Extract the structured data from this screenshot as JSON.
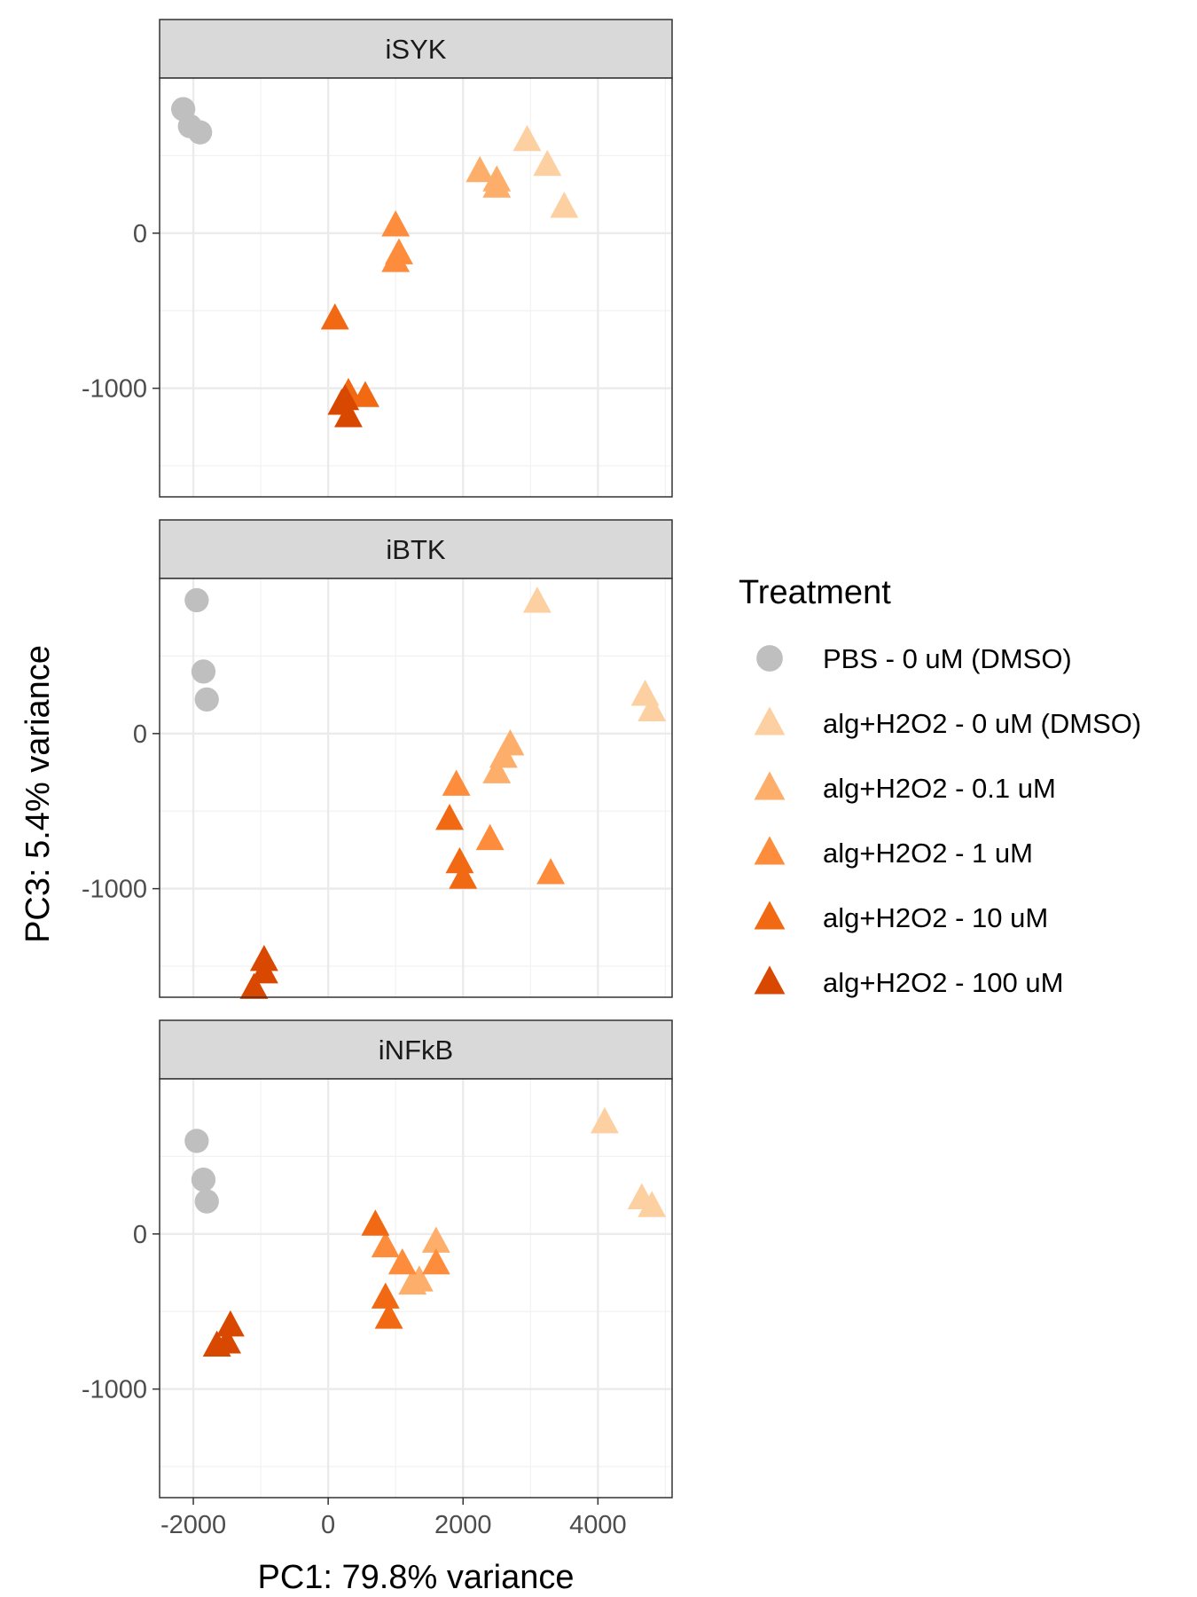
{
  "chart_data": {
    "type": "scatter",
    "xlabel": "PC1: 79.8% variance",
    "ylabel": "PC3: 5.4% variance",
    "xlim": [
      -2500,
      5100
    ],
    "ylim": [
      -1700,
      1000
    ],
    "x_ticks": [
      -2000,
      0,
      2000,
      4000
    ],
    "y_ticks": [
      0,
      -1000
    ],
    "grid": true,
    "legend": {
      "title": "Treatment",
      "placement": "right",
      "entries": [
        {
          "label": "PBS - 0 uM (DMSO)",
          "shape": "circle",
          "color": "#bfbfbf"
        },
        {
          "label": "alg+H2O2 - 0 uM (DMSO)",
          "shape": "triangle",
          "color": "#fdd0a2"
        },
        {
          "label": "alg+H2O2 - 0.1 uM",
          "shape": "triangle",
          "color": "#fdae6b"
        },
        {
          "label": "alg+H2O2 - 1 uM",
          "shape": "triangle",
          "color": "#fd8d3c"
        },
        {
          "label": "alg+H2O2 - 10 uM",
          "shape": "triangle",
          "color": "#f16913"
        },
        {
          "label": "alg+H2O2 - 100 uM",
          "shape": "triangle",
          "color": "#d94801"
        }
      ]
    },
    "panels": [
      {
        "title": "iSYK",
        "series": [
          {
            "name": "PBS - 0 uM (DMSO)",
            "points": [
              [
                -2150,
                800
              ],
              [
                -2050,
                690
              ],
              [
                -1900,
                650
              ]
            ]
          },
          {
            "name": "alg+H2O2 - 0 uM (DMSO)",
            "points": [
              [
                2950,
                600
              ],
              [
                3250,
                440
              ],
              [
                3500,
                170
              ]
            ]
          },
          {
            "name": "alg+H2O2 - 0.1 uM",
            "points": [
              [
                2250,
                400
              ],
              [
                2500,
                340
              ],
              [
                2500,
                300
              ]
            ]
          },
          {
            "name": "alg+H2O2 - 1 uM",
            "points": [
              [
                1000,
                50
              ],
              [
                1050,
                -130
              ],
              [
                1000,
                -180
              ]
            ]
          },
          {
            "name": "alg+H2O2 - 10 uM",
            "points": [
              [
                100,
                -550
              ],
              [
                550,
                -1050
              ],
              [
                300,
                -1030
              ]
            ]
          },
          {
            "name": "alg+H2O2 - 100 uM",
            "points": [
              [
                200,
                -1100
              ],
              [
                300,
                -1180
              ],
              [
                250,
                -1070
              ]
            ]
          }
        ]
      },
      {
        "title": "iBTK",
        "series": [
          {
            "name": "PBS - 0 uM (DMSO)",
            "points": [
              [
                -1950,
                860
              ],
              [
                -1850,
                400
              ],
              [
                -1800,
                220
              ]
            ]
          },
          {
            "name": "alg+H2O2 - 0 uM (DMSO)",
            "points": [
              [
                3100,
                850
              ],
              [
                4700,
                250
              ],
              [
                4800,
                150
              ]
            ]
          },
          {
            "name": "alg+H2O2 - 0.1 uM",
            "points": [
              [
                2700,
                -70
              ],
              [
                2600,
                -150
              ],
              [
                2500,
                -250
              ]
            ]
          },
          {
            "name": "alg+H2O2 - 1 uM",
            "points": [
              [
                1900,
                -330
              ],
              [
                2400,
                -680
              ],
              [
                3300,
                -900
              ]
            ]
          },
          {
            "name": "alg+H2O2 - 10 uM",
            "points": [
              [
                1800,
                -550
              ],
              [
                1950,
                -830
              ],
              [
                2000,
                -930
              ]
            ]
          },
          {
            "name": "alg+H2O2 - 100 uM",
            "points": [
              [
                -950,
                -1460
              ],
              [
                -950,
                -1540
              ],
              [
                -1100,
                -1640
              ]
            ]
          }
        ]
      },
      {
        "title": "iNFkB",
        "series": [
          {
            "name": "PBS - 0 uM (DMSO)",
            "points": [
              [
                -1950,
                600
              ],
              [
                -1850,
                350
              ],
              [
                -1800,
                210
              ]
            ]
          },
          {
            "name": "alg+H2O2 - 0 uM (DMSO)",
            "points": [
              [
                4100,
                720
              ],
              [
                4650,
                230
              ],
              [
                4800,
                180
              ]
            ]
          },
          {
            "name": "alg+H2O2 - 0.1 uM",
            "points": [
              [
                1600,
                -50
              ],
              [
                1350,
                -300
              ],
              [
                1250,
                -320
              ]
            ]
          },
          {
            "name": "alg+H2O2 - 1 uM",
            "points": [
              [
                1600,
                -190
              ],
              [
                1100,
                -190
              ],
              [
                850,
                -80
              ]
            ]
          },
          {
            "name": "alg+H2O2 - 10 uM",
            "points": [
              [
                700,
                60
              ],
              [
                850,
                -410
              ],
              [
                900,
                -540
              ]
            ]
          },
          {
            "name": "alg+H2O2 - 100 uM",
            "points": [
              [
                -1450,
                -590
              ],
              [
                -1500,
                -700
              ],
              [
                -1650,
                -720
              ]
            ]
          }
        ]
      }
    ]
  }
}
